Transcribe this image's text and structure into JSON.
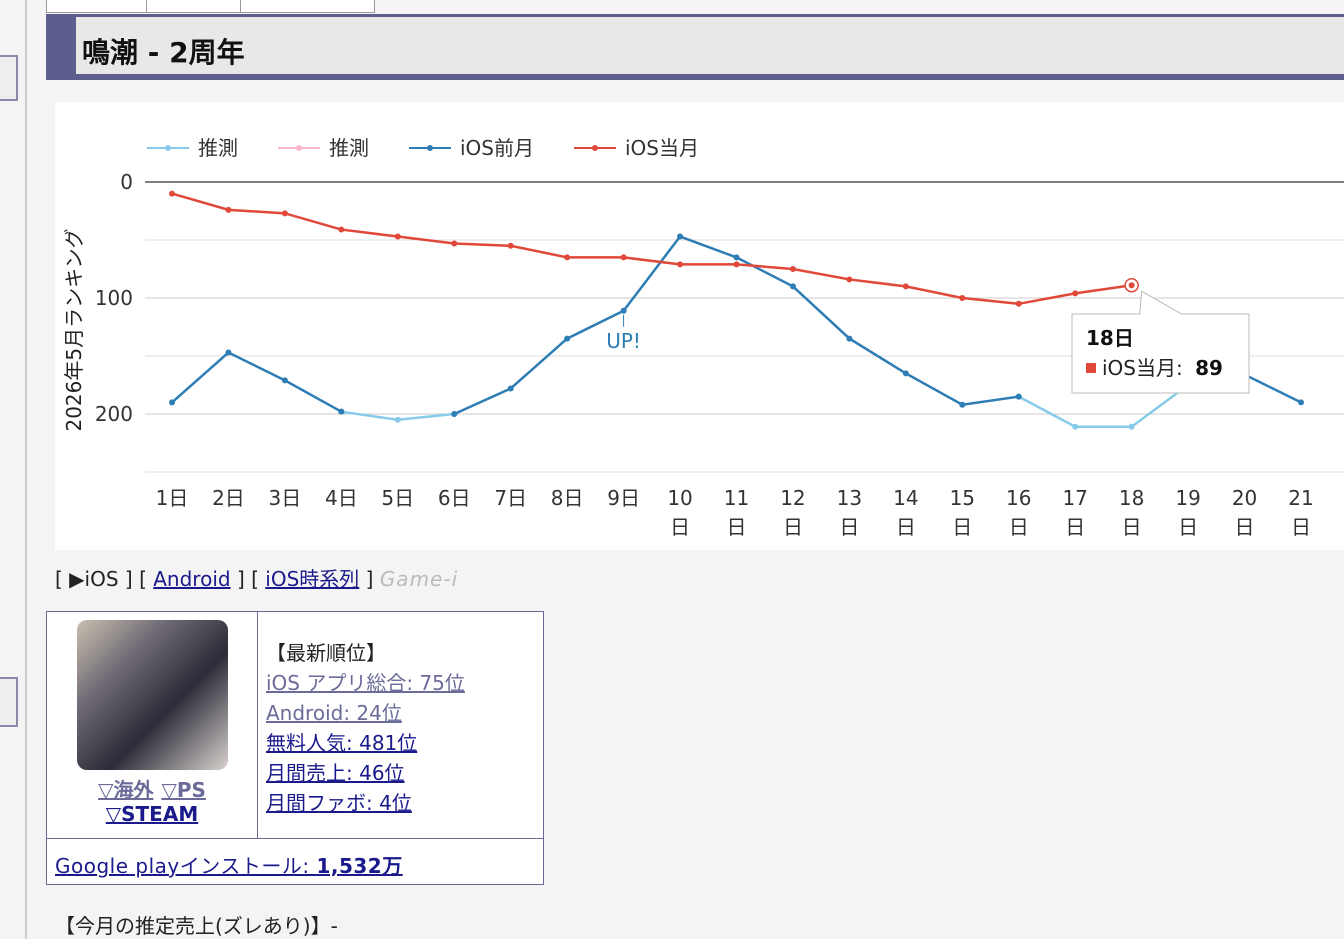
{
  "header": {
    "title": "鳴潮 - 2周年"
  },
  "chart_data": {
    "type": "line",
    "ylabel": "2026年5月ランキング",
    "categories": [
      "1日",
      "2日",
      "3日",
      "4日",
      "5日",
      "6日",
      "7日",
      "8日",
      "9日",
      "10日",
      "11日",
      "12日",
      "13日",
      "14日",
      "15日",
      "16日",
      "17日",
      "18日",
      "19日",
      "20日",
      "21日"
    ],
    "series": [
      {
        "name": "推測",
        "color": "#87cbea",
        "values": [
          null,
          null,
          null,
          198,
          205,
          200,
          null,
          null,
          null,
          null,
          null,
          null,
          null,
          null,
          null,
          185,
          211,
          211,
          175,
          166,
          null
        ]
      },
      {
        "name": "推測",
        "color": "#f7b6cc",
        "values": [
          null,
          null,
          null,
          null,
          null,
          null,
          null,
          null,
          null,
          null,
          null,
          null,
          null,
          null,
          null,
          null,
          null,
          null,
          null,
          null,
          null
        ]
      },
      {
        "name": "iOS前月",
        "color": "#2e7db5",
        "values": [
          190,
          147,
          171,
          198,
          null,
          200,
          178,
          135,
          111,
          47,
          65,
          90,
          135,
          165,
          192,
          185,
          null,
          null,
          null,
          166,
          190
        ]
      },
      {
        "name": "iOS当月",
        "color": "#e0483a",
        "values": [
          10,
          24,
          27,
          41,
          47,
          53,
          55,
          65,
          65,
          71,
          71,
          75,
          84,
          90,
          100,
          105,
          96,
          89,
          null,
          null,
          null
        ]
      }
    ],
    "ylim": [
      0,
      250
    ],
    "yticks": [
      0,
      100,
      200
    ],
    "y_reversed": true,
    "grid": true,
    "legend": "top-left",
    "annotations": [
      {
        "text": "UP!",
        "series": 2,
        "index": 8
      }
    ],
    "tooltip": {
      "title": "18日",
      "label": "iOS当月: ",
      "value": 89,
      "series": 3,
      "index": 17
    }
  },
  "nav": {
    "open": "[",
    "close": "]",
    "items": [
      {
        "text": "▶iOS",
        "link": false
      },
      {
        "text": "Android",
        "link": true
      },
      {
        "text": "iOS時系列",
        "link": true
      }
    ],
    "source": "Game-i"
  },
  "app": {
    "regions": [
      "▽海外",
      "▽PS",
      "▽STEAM"
    ],
    "rank_heading": "【最新順位】",
    "ranks": [
      "iOS アプリ総合: 75位",
      "Android: 24位",
      "無料人気: 481位",
      "月間売上: 46位",
      "月間ファボ: 4位"
    ],
    "install_label": "Google playインストール: ",
    "install_value": "1,532万"
  },
  "revenue": {
    "label": "【今月の推定売上(ズレあり)】",
    "value": "-"
  }
}
